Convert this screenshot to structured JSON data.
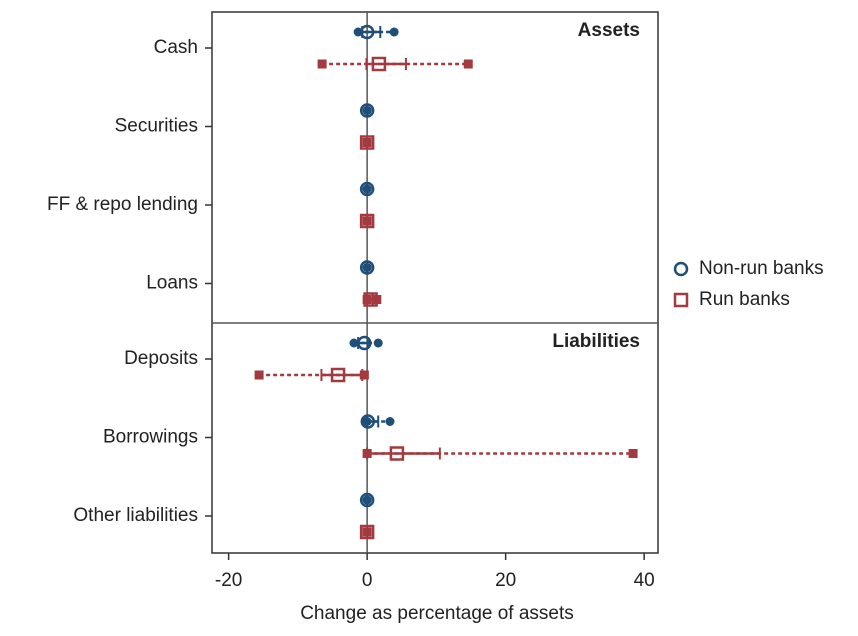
{
  "chart_data": {
    "type": "range-dot",
    "panels": [
      {
        "title": "Assets",
        "categories": [
          "Cash",
          "Securities",
          "FF & repo lending",
          "Loans"
        ]
      },
      {
        "title": "Liabilities",
        "categories": [
          "Deposits",
          "Borrowings",
          "Other liabilities"
        ]
      }
    ],
    "series": [
      {
        "name": "Non-run banks",
        "color": "#1f4e79",
        "marker": "circle",
        "lo": [
          -1.3,
          0,
          0,
          0,
          -1.9,
          0,
          0
        ],
        "q1": [
          -0.7,
          0,
          0,
          0,
          -1.3,
          0,
          0
        ],
        "mid": [
          0,
          0,
          0,
          0,
          -0.4,
          0.1,
          0
        ],
        "q3": [
          1.9,
          0,
          0,
          0,
          0.1,
          1.6,
          0
        ],
        "hi": [
          3.9,
          0,
          0,
          0,
          1.6,
          3.3,
          0
        ]
      },
      {
        "name": "Run banks",
        "color": "#a33a40",
        "marker": "square",
        "lo": [
          -6.5,
          0,
          0,
          0,
          -15.6,
          0,
          0
        ],
        "q1": [
          -0.1,
          0,
          0,
          0,
          -6.6,
          0,
          0
        ],
        "mid": [
          1.7,
          0,
          0,
          0.5,
          -4.2,
          4.3,
          0
        ],
        "q3": [
          5.6,
          0,
          0,
          0.8,
          -0.7,
          10.5,
          0
        ],
        "hi": [
          14.6,
          0,
          0,
          1.4,
          -0.4,
          38.4,
          0
        ]
      }
    ],
    "xlabel": "Change as percentage of assets",
    "xlim": [
      -22.4,
      42
    ],
    "xticks": [
      -20,
      0,
      20,
      40
    ]
  }
}
